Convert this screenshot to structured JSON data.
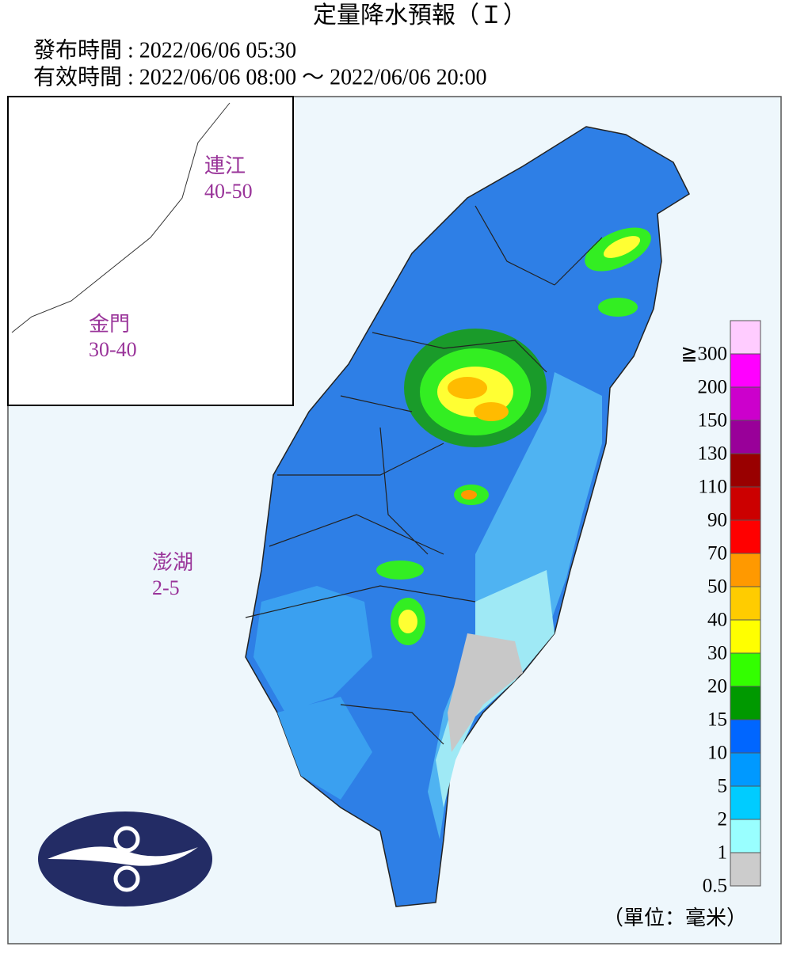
{
  "header": {
    "title": "定量降水預報（Ｉ）",
    "issued": "發布時間 : 2022/06/06 05:30",
    "valid": "有效時間 : 2022/06/06 08:00 ～ 2022/06/06 20:00"
  },
  "regions": [
    {
      "name": "連江",
      "range": "40-50"
    },
    {
      "name": "金門",
      "range": "30-40"
    },
    {
      "name": "澎湖",
      "range": "2-5"
    }
  ],
  "legend": {
    "unit": "（單位：毫米）",
    "items": [
      {
        "color": "#ffccff",
        "label": "≧300"
      },
      {
        "color": "#ff00ff",
        "label": "200"
      },
      {
        "color": "#cc00cc",
        "label": "150"
      },
      {
        "color": "#990099",
        "label": "130"
      },
      {
        "color": "#990000",
        "label": "110"
      },
      {
        "color": "#cc0000",
        "label": "90"
      },
      {
        "color": "#ff0000",
        "label": "70"
      },
      {
        "color": "#ff9900",
        "label": "50"
      },
      {
        "color": "#ffcc00",
        "label": "40"
      },
      {
        "color": "#ffff00",
        "label": "30"
      },
      {
        "color": "#33ff00",
        "label": "20"
      },
      {
        "color": "#009900",
        "label": "15"
      },
      {
        "color": "#0066ff",
        "label": "10"
      },
      {
        "color": "#0099ff",
        "label": "5"
      },
      {
        "color": "#00ccff",
        "label": "2"
      },
      {
        "color": "#99ffff",
        "label": "1"
      },
      {
        "color": "#cccccc",
        "label": "0.5"
      }
    ]
  }
}
